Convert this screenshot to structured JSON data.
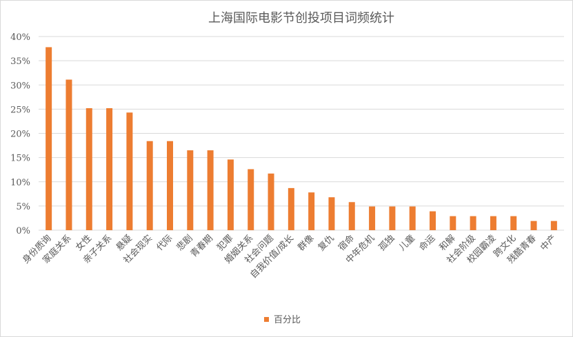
{
  "chart_data": {
    "type": "bar",
    "title": "上海国际电影节创投项目词频统计",
    "xlabel": "",
    "ylabel": "",
    "ylim": [
      0,
      0.4
    ],
    "yticks": [
      "0%",
      "5%",
      "10%",
      "15%",
      "20%",
      "25%",
      "30%",
      "35%",
      "40%"
    ],
    "categories": [
      "身份质询",
      "家庭关系",
      "女性",
      "亲子关系",
      "悬疑",
      "社会现实",
      "代际",
      "悲剧",
      "青春期",
      "犯罪",
      "婚姻关系",
      "社会问题",
      "自我价值/成长",
      "群像",
      "复仇",
      "宿命",
      "中年危机",
      "孤独",
      "儿童",
      "命运",
      "和解",
      "社会阶级",
      "校园霸凌",
      "跨文化",
      "残酷青春",
      "中产"
    ],
    "series": [
      {
        "name": "百分比",
        "color": "#ED7D31",
        "values": [
          0.378,
          0.311,
          0.252,
          0.252,
          0.243,
          0.184,
          0.184,
          0.165,
          0.165,
          0.146,
          0.126,
          0.117,
          0.087,
          0.078,
          0.068,
          0.058,
          0.049,
          0.049,
          0.049,
          0.039,
          0.029,
          0.029,
          0.029,
          0.029,
          0.019,
          0.019
        ]
      }
    ],
    "grid": true,
    "legend": "bottom"
  }
}
